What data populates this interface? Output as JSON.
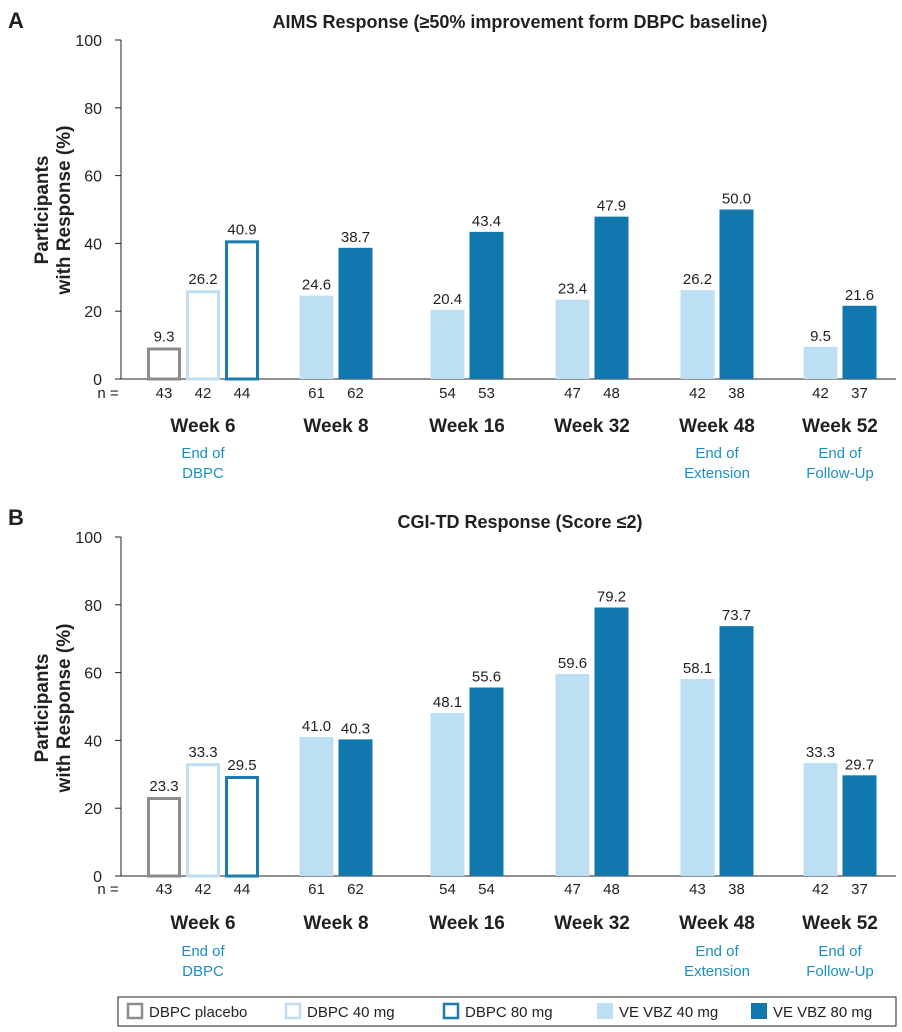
{
  "chart_data": [
    {
      "type": "bar",
      "panel_letter": "A",
      "title": "AIMS Response (≥50% improvement form DBPC baseline)",
      "xlabel": "",
      "ylabel": [
        "Participants",
        "with Response (%)"
      ],
      "ylim": [
        0,
        100
      ],
      "yticks": [
        0,
        20,
        40,
        60,
        80,
        100
      ],
      "n_label": "n =",
      "groups": [
        {
          "label": "Week 6",
          "sub": [
            "End of",
            "DBPC"
          ],
          "bars": [
            {
              "series": "DBPC placebo",
              "value": 9.3,
              "label": "9.3",
              "n": "43"
            },
            {
              "series": "DBPC 40 mg",
              "value": 26.2,
              "label": "26.2",
              "n": "42"
            },
            {
              "series": "DBPC 80 mg",
              "value": 40.9,
              "label": "40.9",
              "n": "44"
            }
          ]
        },
        {
          "label": "Week 8",
          "sub": [],
          "bars": [
            {
              "series": "VE VBZ 40 mg",
              "value": 24.6,
              "label": "24.6",
              "n": "61"
            },
            {
              "series": "VE VBZ 80 mg",
              "value": 38.7,
              "label": "38.7",
              "n": "62"
            }
          ]
        },
        {
          "label": "Week 16",
          "sub": [],
          "bars": [
            {
              "series": "VE VBZ 40 mg",
              "value": 20.4,
              "label": "20.4",
              "n": "54"
            },
            {
              "series": "VE VBZ 80 mg",
              "value": 43.4,
              "label": "43.4",
              "n": "53"
            }
          ]
        },
        {
          "label": "Week 32",
          "sub": [],
          "bars": [
            {
              "series": "VE VBZ 40 mg",
              "value": 23.4,
              "label": "23.4",
              "n": "47"
            },
            {
              "series": "VE VBZ 80 mg",
              "value": 47.9,
              "label": "47.9",
              "n": "48"
            }
          ]
        },
        {
          "label": "Week 48",
          "sub": [
            "End of",
            "Extension"
          ],
          "bars": [
            {
              "series": "VE VBZ 40 mg",
              "value": 26.2,
              "label": "26.2",
              "n": "42"
            },
            {
              "series": "VE VBZ 80 mg",
              "value": 50.0,
              "label": "50.0",
              "n": "38"
            }
          ]
        },
        {
          "label": "Week 52",
          "sub": [
            "End of",
            "Follow-Up"
          ],
          "bars": [
            {
              "series": "VE VBZ 40 mg",
              "value": 9.5,
              "label": "9.5",
              "n": "42"
            },
            {
              "series": "VE VBZ 80 mg",
              "value": 21.6,
              "label": "21.6",
              "n": "37"
            }
          ]
        }
      ]
    },
    {
      "type": "bar",
      "panel_letter": "B",
      "title": "CGI-TD Response (Score ≤2)",
      "xlabel": "",
      "ylabel": [
        "Participants",
        "with Response (%)"
      ],
      "ylim": [
        0,
        100
      ],
      "yticks": [
        0,
        20,
        40,
        60,
        80,
        100
      ],
      "n_label": "n =",
      "groups": [
        {
          "label": "Week 6",
          "sub": [
            "End of",
            "DBPC"
          ],
          "bars": [
            {
              "series": "DBPC placebo",
              "value": 23.3,
              "label": "23.3",
              "n": "43"
            },
            {
              "series": "DBPC 40 mg",
              "value": 33.3,
              "label": "33.3",
              "n": "42"
            },
            {
              "series": "DBPC 80 mg",
              "value": 29.5,
              "label": "29.5",
              "n": "44"
            }
          ]
        },
        {
          "label": "Week 8",
          "sub": [],
          "bars": [
            {
              "series": "VE VBZ 40 mg",
              "value": 41.0,
              "label": "41.0",
              "n": "61"
            },
            {
              "series": "VE VBZ 80 mg",
              "value": 40.3,
              "label": "40.3",
              "n": "62"
            }
          ]
        },
        {
          "label": "Week 16",
          "sub": [],
          "bars": [
            {
              "series": "VE VBZ 40 mg",
              "value": 48.1,
              "label": "48.1",
              "n": "54"
            },
            {
              "series": "VE VBZ 80 mg",
              "value": 55.6,
              "label": "55.6",
              "n": "54"
            }
          ]
        },
        {
          "label": "Week 32",
          "sub": [],
          "bars": [
            {
              "series": "VE VBZ 40 mg",
              "value": 59.6,
              "label": "59.6",
              "n": "47"
            },
            {
              "series": "VE VBZ 80 mg",
              "value": 79.2,
              "label": "79.2",
              "n": "48"
            }
          ]
        },
        {
          "label": "Week 48",
          "sub": [
            "End of",
            "Extension"
          ],
          "bars": [
            {
              "series": "VE VBZ 40 mg",
              "value": 58.1,
              "label": "58.1",
              "n": "43"
            },
            {
              "series": "VE VBZ 80 mg",
              "value": 73.7,
              "label": "73.7",
              "n": "38"
            }
          ]
        },
        {
          "label": "Week 52",
          "sub": [
            "End of",
            "Follow-Up"
          ],
          "bars": [
            {
              "series": "VE VBZ 40 mg",
              "value": 33.3,
              "label": "33.3",
              "n": "42"
            },
            {
              "series": "VE VBZ 80 mg",
              "value": 29.7,
              "label": "29.7",
              "n": "37"
            }
          ]
        }
      ]
    }
  ],
  "legend": [
    {
      "name": "DBPC placebo",
      "style": "outline",
      "color": "#8c8c8c"
    },
    {
      "name": "DBPC 40 mg",
      "style": "outline",
      "color": "#bfe0f4"
    },
    {
      "name": "DBPC 80 mg",
      "style": "outline",
      "color": "#1b7cb2"
    },
    {
      "name": "VE VBZ 40 mg",
      "style": "filled",
      "color": "#bddff4"
    },
    {
      "name": "VE VBZ 80 mg",
      "style": "filled",
      "color": "#1178ae"
    }
  ],
  "colors": {
    "text": "#231f20",
    "sublabel": "#1b8fc4"
  }
}
